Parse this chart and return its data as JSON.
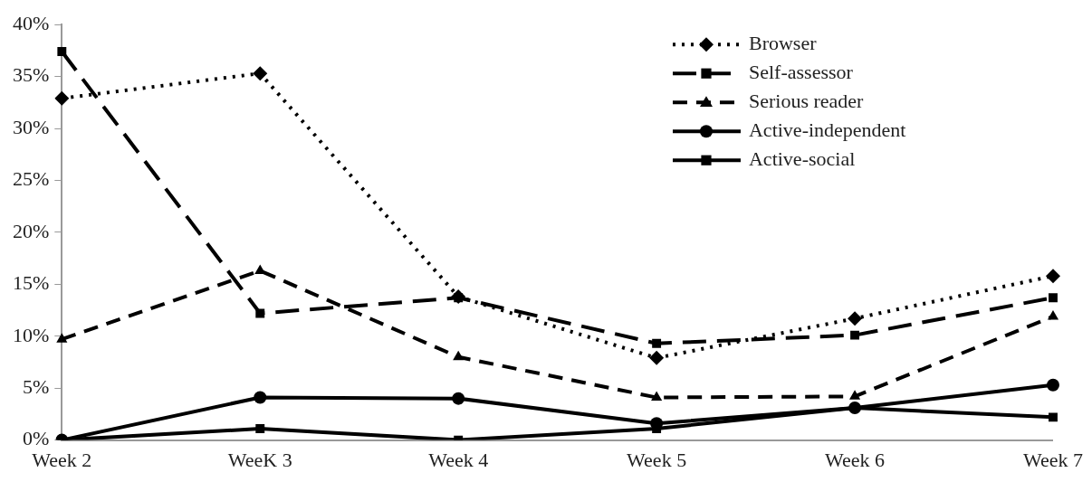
{
  "chart_data": {
    "type": "line",
    "categories": [
      "Week 2",
      "WeeK 3",
      "Week 4",
      "Week 5",
      "Week 6",
      "Week 7"
    ],
    "ylim": [
      0,
      40
    ],
    "yticks": [
      {
        "value": 0,
        "label": "0%"
      },
      {
        "value": 5,
        "label": "5%"
      },
      {
        "value": 10,
        "label": "10%"
      },
      {
        "value": 15,
        "label": "15%"
      },
      {
        "value": 20,
        "label": "20%"
      },
      {
        "value": 25,
        "label": "25%"
      },
      {
        "value": 30,
        "label": "30%"
      },
      {
        "value": 35,
        "label": "35%"
      },
      {
        "value": 40,
        "label": "40%"
      }
    ],
    "grid": false,
    "legend": "top right",
    "series": [
      {
        "name": "Browser",
        "color": "#000000",
        "marker": "diamond",
        "line_style": "dotted",
        "values": [
          32.9,
          35.3,
          13.8,
          7.9,
          11.7,
          15.8
        ]
      },
      {
        "name": "Self-assessor",
        "color": "#000000",
        "marker": "square",
        "line_style": "dashed",
        "values": [
          37.4,
          12.2,
          13.7,
          9.3,
          10.1,
          13.7
        ]
      },
      {
        "name": "Serious reader",
        "color": "#000000",
        "marker": "triangle",
        "line_style": "dashed",
        "values": [
          9.7,
          16.3,
          8.0,
          4.1,
          4.2,
          11.9
        ]
      },
      {
        "name": "Active-independent",
        "color": "#000000",
        "marker": "circle",
        "line_style": "solid",
        "values": [
          0,
          4.1,
          4.0,
          1.6,
          3.1,
          5.3
        ]
      },
      {
        "name": "Active-social",
        "color": "#000000",
        "marker": "square",
        "line_style": "solid",
        "values": [
          0,
          1.1,
          0,
          1.1,
          3.1,
          2.2
        ]
      }
    ]
  }
}
